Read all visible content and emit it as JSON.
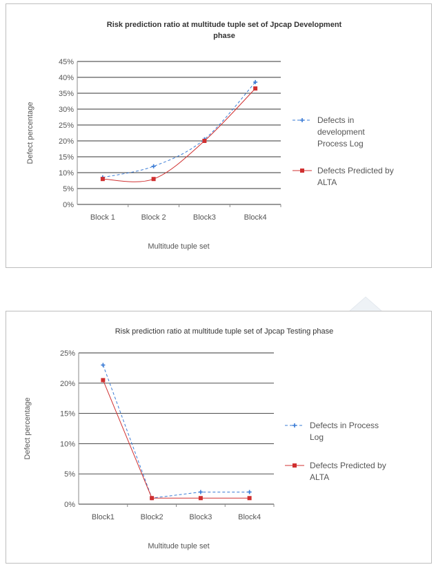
{
  "colors": {
    "series1": "#3a7bd5",
    "series2": "#d03030",
    "grid": "#333333",
    "frame": "#bdbdbd"
  },
  "chart_data": [
    {
      "type": "line",
      "title": "Risk prediction ratio at multitude tuple set of Jpcap  Development phase",
      "title_lines": [
        "Risk prediction ratio at multitude tuple set of Jpcap  Development",
        "phase"
      ],
      "xlabel": "Multitude tuple set",
      "ylabel": "Defect percentage",
      "categories": [
        "Block 1",
        "Block 2",
        "Block3",
        "Block4"
      ],
      "ylim": [
        0,
        45
      ],
      "yticks": [
        "0%",
        "5%",
        "10%",
        "15%",
        "20%",
        "25%",
        "30%",
        "35%",
        "40%",
        "45%"
      ],
      "grid": true,
      "legend_position": "right",
      "smooth": true,
      "series": [
        {
          "name_lines": [
            "Defects in",
            "development",
            "Process Log"
          ],
          "name": "Defects in development Process Log",
          "values": [
            8.5,
            12,
            20.5,
            38.5
          ],
          "marker": "cross",
          "style": "dashed"
        },
        {
          "name_lines": [
            "Defects Predicted by",
            "ALTA"
          ],
          "name": "Defects Predicted by ALTA",
          "values": [
            8,
            8,
            20,
            36.5
          ],
          "marker": "square",
          "style": "solid"
        }
      ]
    },
    {
      "type": "line",
      "title": "Risk prediction ratio at multitude tuple set of Jpcap Testing phase",
      "title_lines": [
        "Risk prediction ratio at multitude tuple set of Jpcap Testing phase"
      ],
      "xlabel": "Multitude tuple set",
      "ylabel": "Defect percentage",
      "categories": [
        "Block1",
        "Block2",
        "Block3",
        "Block4"
      ],
      "ylim": [
        0,
        25
      ],
      "yticks": [
        "0%",
        "5%",
        "10%",
        "15%",
        "20%",
        "25%"
      ],
      "grid": true,
      "legend_position": "right",
      "smooth": false,
      "series": [
        {
          "name_lines": [
            "Defects in Process",
            "Log"
          ],
          "name": "Defects in Process Log",
          "values": [
            23,
            1,
            2,
            2
          ],
          "marker": "cross",
          "style": "dashed"
        },
        {
          "name_lines": [
            "Defects Predicted by",
            "ALTA"
          ],
          "name": "Defects Predicted by ALTA",
          "values": [
            20.5,
            1,
            1,
            1
          ],
          "marker": "square",
          "style": "solid"
        }
      ]
    }
  ]
}
